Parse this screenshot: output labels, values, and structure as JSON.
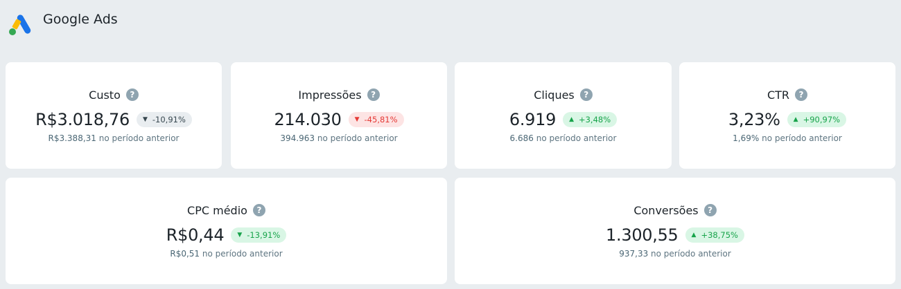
{
  "header": {
    "title": "Google Ads",
    "logo": "google-ads-logo"
  },
  "colors": {
    "neutral_bg": "#e9edf0",
    "bad": "#e53935",
    "good": "#17a34a"
  },
  "metrics": [
    {
      "label": "Custo",
      "value": "R$3.018,76",
      "change": "-10,91%",
      "direction": "down",
      "tone": "neutral",
      "previous": "R$3.388,31",
      "previous_suffix": "no período anterior"
    },
    {
      "label": "Impressões",
      "value": "214.030",
      "change": "-45,81%",
      "direction": "down",
      "tone": "bad",
      "previous": "394.963",
      "previous_suffix": "no período anterior"
    },
    {
      "label": "Cliques",
      "value": "6.919",
      "change": "+3,48%",
      "direction": "up",
      "tone": "good",
      "previous": "6.686",
      "previous_suffix": "no período anterior"
    },
    {
      "label": "CTR",
      "value": "3,23%",
      "change": "+90,97%",
      "direction": "up",
      "tone": "good",
      "previous": "1,69%",
      "previous_suffix": "no período anterior"
    },
    {
      "label": "CPC médio",
      "value": "R$0,44",
      "change": "-13,91%",
      "direction": "down",
      "tone": "good",
      "previous": "R$0,51",
      "previous_suffix": "no período anterior"
    },
    {
      "label": "Conversões",
      "value": "1.300,55",
      "change": "+38,75%",
      "direction": "up",
      "tone": "good",
      "previous": "937,33",
      "previous_suffix": "no período anterior"
    }
  ]
}
